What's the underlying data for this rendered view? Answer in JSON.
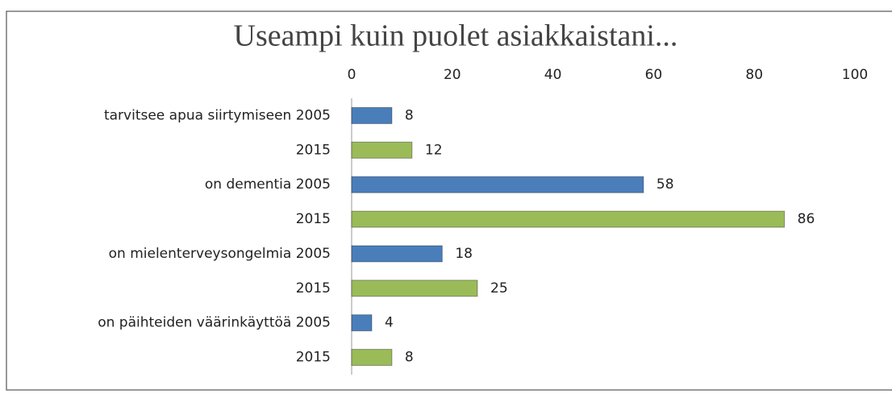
{
  "chart_data": {
    "type": "bar",
    "orientation": "horizontal",
    "title": "Useampi kuin puolet asiakkaistani...",
    "categories": [
      "tarvitsee apua siirtymiseen 2005",
      "2015",
      "on dementia 2005",
      "2015",
      "on mielenterveysongelmia 2005",
      "2015",
      "on päihteiden väärinkäyttöä 2005",
      "2015"
    ],
    "values": [
      8,
      12,
      58,
      86,
      18,
      25,
      4,
      8
    ],
    "colors": [
      "#4a7ebb",
      "#9bbb59",
      "#4a7ebb",
      "#9bbb59",
      "#4a7ebb",
      "#9bbb59",
      "#4a7ebb",
      "#9bbb59"
    ],
    "xlim": [
      0,
      100
    ],
    "xticks": [
      0,
      20,
      40,
      60,
      80,
      100
    ],
    "grid": false
  }
}
